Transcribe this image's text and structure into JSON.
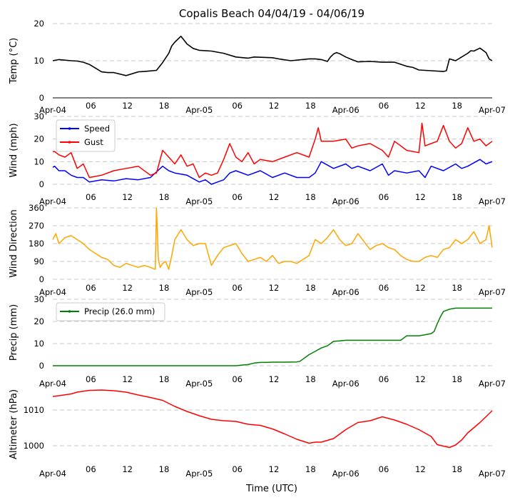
{
  "chart_data": {
    "type": "line",
    "title": "Copalis Beach 04/04/19 - 04/06/19",
    "xlabel": "Time (UTC)",
    "x_ticks": [
      "Apr-04",
      "06",
      "12",
      "18",
      "Apr-05",
      "06",
      "12",
      "18",
      "Apr-06",
      "06",
      "12",
      "18",
      "Apr-07"
    ],
    "x_hours": [
      0,
      6,
      12,
      18,
      24,
      30,
      36,
      42,
      48,
      54,
      60,
      66,
      72
    ],
    "panels": [
      {
        "id": "temp",
        "ylabel": "Temp (°C)",
        "ylim": [
          0,
          20
        ],
        "yticks": [
          0,
          10,
          20
        ],
        "series": [
          {
            "name": "Temp",
            "color": "#000000",
            "x": [
              0,
              1,
              3,
              4,
              5,
              6,
              8,
              9,
              10,
              12,
              14,
              15,
              17,
              18,
              19,
              19.5,
              20,
              21,
              22,
              23,
              24,
              26,
              28,
              30,
              32,
              33,
              36,
              37,
              39,
              42,
              43,
              44,
              45,
              45.5,
              46,
              46.5,
              47,
              48,
              49,
              50,
              52,
              54,
              56,
              58,
              59,
              60,
              62,
              64,
              64.5,
              65,
              66,
              67,
              68,
              68.5,
              69,
              70,
              71,
              71.5,
              72
            ],
            "y": [
              10,
              10.3,
              10,
              9.9,
              9.6,
              9,
              7,
              6.8,
              6.8,
              6,
              7,
              7.1,
              7.4,
              9.5,
              12,
              14,
              15,
              16.6,
              14.5,
              13.3,
              12.8,
              12.6,
              12,
              11,
              10.7,
              11,
              10.8,
              10.5,
              10,
              10.5,
              10.5,
              10.3,
              9.8,
              11,
              11.8,
              12.2,
              11.9,
              11,
              10.3,
              9.7,
              9.8,
              9.6,
              9.6,
              8.5,
              8.2,
              7.5,
              7.3,
              7.1,
              7.3,
              10.5,
              10,
              11,
              12,
              12.7,
              12.6,
              13.4,
              12.2,
              10.5,
              10
            ]
          }
        ]
      },
      {
        "id": "wind",
        "ylabel": "Wind (mph)",
        "ylim": [
          0,
          30
        ],
        "yticks": [
          0,
          10,
          20,
          30
        ],
        "legend": [
          {
            "label": "Speed",
            "color": "#0000ff"
          },
          {
            "label": "Gust",
            "color": "#ff0000"
          }
        ],
        "series": [
          {
            "name": "Speed",
            "color": "#0000ff",
            "x": [
              0,
              0.3,
              1,
              2,
              3,
              4,
              5,
              5.5,
              6,
              8,
              10,
              12,
              14,
              16,
              18,
              19,
              20,
              22,
              24,
              25,
              26,
              27,
              28,
              29,
              30,
              32,
              34,
              36,
              38,
              40,
              42,
              43,
              44,
              46,
              48,
              49,
              50,
              52,
              54,
              55,
              56,
              58,
              60,
              61,
              62,
              64,
              66,
              67,
              68,
              70,
              71,
              72
            ],
            "y": [
              7.5,
              8,
              6,
              6,
              4,
              3,
              3,
              2,
              1,
              2,
              1.5,
              2.5,
              2,
              3,
              8,
              6,
              5,
              4,
              1,
              2,
              0,
              1,
              2,
              5,
              6,
              4,
              6,
              3,
              5,
              3,
              3,
              5,
              10,
              7,
              9,
              7,
              8,
              6,
              9,
              4,
              6,
              5,
              6,
              3,
              8,
              6,
              9,
              7,
              8,
              11,
              9,
              10
            ]
          },
          {
            "name": "Gust",
            "color": "#ff0000",
            "x": [
              0,
              0.3,
              1,
              2,
              3,
              4,
              5,
              6,
              8,
              10,
              12,
              14,
              16,
              17,
              18,
              19,
              20,
              21,
              22,
              23,
              24,
              25,
              26,
              27,
              28,
              29,
              30,
              31,
              32,
              33,
              34,
              36,
              38,
              40,
              42,
              43,
              43.5,
              44,
              46,
              48,
              49,
              50,
              52,
              54,
              55,
              56,
              58,
              60,
              60.5,
              61,
              62,
              63,
              64,
              65,
              66,
              67,
              68,
              69,
              70,
              71,
              72
            ],
            "y": [
              14.5,
              14.5,
              13,
              12,
              14,
              7,
              9,
              3,
              4,
              6,
              7,
              8,
              4,
              5,
              15,
              12,
              9,
              13,
              8,
              9,
              3,
              5,
              4,
              5,
              11,
              18,
              12,
              10,
              14,
              9,
              11,
              10,
              12,
              14,
              12,
              20,
              25,
              19,
              19,
              20,
              16,
              17,
              18,
              15,
              12,
              19,
              15,
              14,
              27,
              17,
              18,
              19,
              26,
              19,
              16,
              18,
              25,
              19,
              20,
              17,
              19
            ]
          }
        ]
      },
      {
        "id": "dir",
        "ylabel": "Wind Direction",
        "ylim": [
          0,
          360
        ],
        "yticks": [
          0,
          90,
          180,
          270,
          360
        ],
        "series": [
          {
            "name": "Direction",
            "color": "#ffa500",
            "x": [
              0,
              0.5,
              1,
              2,
              3,
              4,
              5,
              6,
              7,
              8,
              9,
              10,
              11,
              12,
              13,
              14,
              15,
              16,
              16.8,
              17,
              17.3,
              17.6,
              18,
              18.5,
              19,
              19.5,
              20,
              21,
              22,
              23,
              24,
              25,
              26,
              27,
              28,
              29,
              30,
              31,
              32,
              33,
              34,
              35,
              36,
              37,
              38,
              39,
              40,
              41,
              42,
              43,
              44,
              45,
              46,
              47,
              48,
              49,
              50,
              51,
              52,
              53,
              54,
              55,
              56,
              57,
              58,
              59,
              60,
              61,
              62,
              63,
              64,
              65,
              66,
              67,
              68,
              69,
              70,
              71,
              71.5,
              72
            ],
            "y": [
              200,
              230,
              180,
              210,
              220,
              200,
              180,
              150,
              130,
              110,
              100,
              70,
              60,
              80,
              70,
              60,
              70,
              60,
              50,
              360,
              100,
              60,
              80,
              90,
              50,
              120,
              200,
              250,
              200,
              170,
              180,
              180,
              70,
              120,
              160,
              170,
              180,
              130,
              90,
              100,
              110,
              90,
              120,
              80,
              90,
              90,
              80,
              100,
              120,
              200,
              180,
              210,
              250,
              200,
              170,
              180,
              230,
              190,
              150,
              170,
              180,
              160,
              150,
              120,
              100,
              90,
              90,
              110,
              120,
              110,
              150,
              160,
              200,
              180,
              200,
              240,
              180,
              200,
              270,
              160
            ]
          }
        ]
      },
      {
        "id": "precip",
        "ylabel": "Precip (mm)",
        "ylim": [
          0,
          30
        ],
        "yticks": [
          0,
          10,
          20,
          30
        ],
        "legend": [
          {
            "label": "Precip (26.0 mm)",
            "color": "#008000"
          }
        ],
        "series": [
          {
            "name": "Precip (26.0 mm)",
            "color": "#008000",
            "x": [
              0,
              30,
              31,
              32,
              33,
              34,
              35,
              36,
              38,
              40,
              40.5,
              41,
              42,
              43,
              44,
              45,
              46,
              47,
              48,
              52,
              55,
              57,
              57.5,
              58,
              59,
              60,
              61,
              62,
              62.5,
              63,
              63.5,
              64,
              65,
              66,
              72
            ],
            "y": [
              0,
              0,
              0.3,
              0.5,
              1.2,
              1.5,
              1.5,
              1.6,
              1.6,
              1.7,
              2,
              3,
              5,
              6.5,
              8,
              9,
              11,
              11.2,
              11.5,
              11.5,
              11.5,
              11.5,
              12.5,
              13.5,
              13.5,
              13.5,
              14,
              14.5,
              15.5,
              19,
              22,
              24.5,
              25.5,
              26,
              26
            ]
          }
        ]
      },
      {
        "id": "alt",
        "ylabel": "Altimeter (hPa)",
        "ylim": [
          996,
          1016
        ],
        "yticks": [
          1000,
          1010
        ],
        "series": [
          {
            "name": "Altimeter",
            "color": "#ff0000",
            "x": [
              0,
              1,
              3,
              4,
              6,
              8,
              10,
              12,
              14,
              16,
              18,
              20,
              22,
              24,
              26,
              28,
              30,
              32,
              34,
              36,
              38,
              40,
              42,
              43,
              44,
              46,
              48,
              50,
              52,
              54,
              56,
              58,
              60,
              62,
              63,
              64,
              65,
              66,
              67,
              68,
              70,
              72
            ],
            "y": [
              1013.8,
              1014,
              1014.5,
              1015,
              1015.5,
              1015.6,
              1015.4,
              1015,
              1014.2,
              1013.5,
              1012.7,
              1011,
              1009.6,
              1008.4,
              1007.4,
              1007,
              1006.8,
              1006,
              1005.7,
              1004.7,
              1003.3,
              1001.8,
              1000.7,
              1001,
              1001,
              1002,
              1004.5,
              1006.5,
              1007,
              1008.1,
              1007.2,
              1006,
              1004.5,
              1002.6,
              1000.3,
              999.9,
              999.5,
              1000.2,
              1001.6,
              1003.6,
              1006.5,
              1009.8
            ]
          }
        ]
      }
    ]
  }
}
